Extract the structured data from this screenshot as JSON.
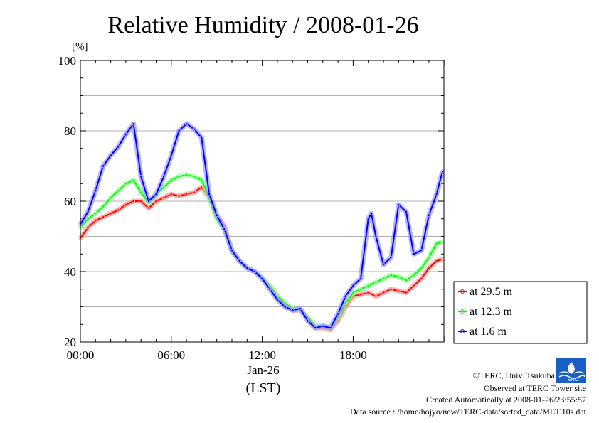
{
  "chart_data": {
    "type": "line",
    "title": "Relative Humidity / 2008-01-26",
    "y_unit": "[%]",
    "ylim": [
      20,
      100
    ],
    "yticks": [
      20,
      40,
      60,
      80,
      100
    ],
    "xlim": [
      0,
      23.99
    ],
    "xticks": [
      {
        "value": 0,
        "label": "00:00"
      },
      {
        "value": 6,
        "label": "06:00"
      },
      {
        "value": 12,
        "label": "12:00"
      },
      {
        "value": 18,
        "label": "18:00"
      }
    ],
    "x_date_label": "Jan-26",
    "x_zone_label": "(LST)",
    "grid": true,
    "legend_position": "right",
    "series": [
      {
        "name": "at 29.5 m",
        "color": "#ff0000",
        "x": [
          0,
          0.5,
          1,
          1.5,
          2,
          2.5,
          3,
          3.5,
          4,
          4.5,
          5,
          5.5,
          6,
          6.5,
          7,
          7.5,
          8,
          8.5,
          9,
          9.5,
          10,
          10.5,
          11,
          11.5,
          12,
          12.5,
          13,
          13.5,
          14,
          14.5,
          15,
          15.5,
          16,
          16.5,
          17,
          17.5,
          18,
          18.5,
          19,
          19.5,
          20,
          20.5,
          21,
          21.5,
          22,
          22.5,
          23,
          23.5,
          23.9
        ],
        "y": [
          49.5,
          52.5,
          54.5,
          55.5,
          56.5,
          57.5,
          59,
          60,
          60,
          58,
          60,
          61,
          62,
          61.5,
          62,
          62.5,
          64,
          61,
          56,
          53,
          46,
          43,
          41,
          40,
          38,
          36,
          33,
          31,
          29,
          29,
          27,
          24,
          24,
          23.5,
          26,
          30,
          33,
          33.5,
          34,
          33,
          34,
          35,
          34.5,
          34,
          36,
          38,
          41,
          43,
          43.5
        ]
      },
      {
        "name": "at 12.3 m",
        "color": "#00ff00",
        "x": [
          0,
          0.5,
          1,
          1.5,
          2,
          2.5,
          3,
          3.5,
          4,
          4.5,
          5,
          5.5,
          6,
          6.5,
          7,
          7.5,
          8,
          8.5,
          9,
          9.5,
          10,
          10.5,
          11,
          11.5,
          12,
          12.5,
          13,
          13.5,
          14,
          14.5,
          15,
          15.5,
          16,
          16.5,
          17,
          17.5,
          18,
          18.5,
          19,
          19.5,
          20,
          20.5,
          21,
          21.5,
          22,
          22.5,
          23,
          23.5,
          23.9
        ],
        "y": [
          52.5,
          55,
          56.5,
          58.5,
          61,
          63,
          65,
          66,
          62.5,
          59.5,
          62,
          64,
          66,
          67,
          67.5,
          67,
          66,
          61,
          55,
          52,
          46,
          43,
          41,
          40,
          38,
          36,
          33,
          31,
          29.5,
          29,
          27,
          24.5,
          24.5,
          24,
          27,
          31,
          34,
          35,
          36,
          37,
          38,
          39,
          38.5,
          37.5,
          39,
          41,
          44,
          48,
          48.5
        ]
      },
      {
        "name": "at 1.6 m",
        "color": "#0000ff",
        "x": [
          0,
          0.5,
          1,
          1.5,
          2,
          2.5,
          3,
          3.5,
          4,
          4.5,
          5,
          5.5,
          6,
          6.5,
          7,
          7.5,
          8,
          8.5,
          9,
          9.5,
          10,
          10.5,
          11,
          11.5,
          12,
          12.5,
          13,
          13.5,
          14,
          14.5,
          15,
          15.5,
          16,
          16.5,
          17,
          17.5,
          18,
          18.5,
          19,
          19.2,
          19.5,
          20,
          20.5,
          21,
          21.5,
          22,
          22.5,
          23,
          23.5,
          23.9
        ],
        "y": [
          53.5,
          57,
          63,
          70,
          73,
          75.5,
          79,
          82,
          67,
          60,
          62,
          67,
          73,
          80,
          82,
          80.5,
          78,
          62,
          56,
          52,
          46,
          43,
          41,
          40,
          38,
          35,
          32,
          30,
          29,
          29.5,
          26,
          24,
          24.5,
          24,
          28,
          33,
          36,
          38,
          55,
          56.5,
          50,
          42,
          44,
          59,
          57,
          45,
          46,
          56,
          62,
          68.5
        ]
      }
    ]
  },
  "credits": {
    "copyright": "©TERC, Univ. Tsukuba",
    "observed": "Observed at TERC Tower site",
    "created": "Created Automatically at 2008-01-26/23:55:57",
    "source": "Data source : /home/hojyo/new/TERC-data/sorted_data/MET.10s.dat",
    "logo_text": "TERC"
  }
}
